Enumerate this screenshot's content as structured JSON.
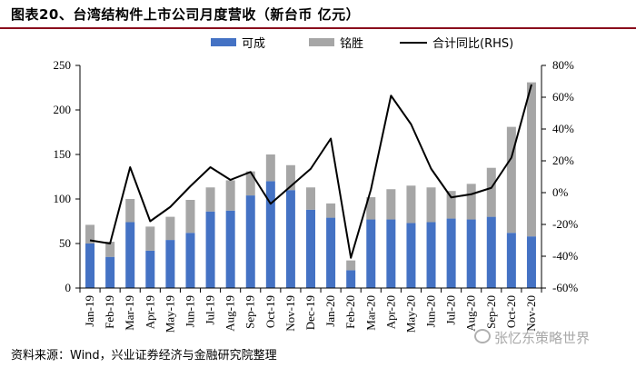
{
  "header": {
    "title": "图表20、台湾结构件上市公司月度营收（新台币 亿元）"
  },
  "source": "资料来源：Wind，兴业证券经济与金融研究院整理",
  "watermark": "张忆东策略世界",
  "colors": {
    "kecheng": "#4472c4",
    "mingsheng": "#a6a6a6",
    "line": "#000000",
    "axis": "#000000",
    "rule": "#8a0e1c"
  },
  "chart_data": {
    "type": "bar",
    "stacked": true,
    "categories": [
      "Jan-19",
      "Feb-19",
      "Mar-19",
      "Apr-19",
      "May-19",
      "Jun-19",
      "Jul-19",
      "Aug-19",
      "Sep-19",
      "Oct-19",
      "Nov-19",
      "Dec-19",
      "Jan-20",
      "Feb-20",
      "Mar-20",
      "Apr-20",
      "May-20",
      "Jun-20",
      "Jul-20",
      "Aug-20",
      "Sep-20",
      "Oct-20",
      "Nov-20"
    ],
    "series": [
      {
        "name": "可成",
        "type": "bar",
        "axis": "left",
        "values": [
          50,
          35,
          74,
          42,
          54,
          62,
          86,
          87,
          104,
          120,
          110,
          88,
          79,
          20,
          77,
          77,
          73,
          74,
          78,
          77,
          80,
          62,
          58
        ]
      },
      {
        "name": "铭胜",
        "type": "bar",
        "axis": "left",
        "values": [
          21,
          17,
          26,
          27,
          26,
          37,
          27,
          34,
          27,
          30,
          28,
          25,
          16,
          11,
          25,
          34,
          42,
          39,
          31,
          40,
          55,
          119,
          173
        ]
      },
      {
        "name": "合计同比(RHS)",
        "type": "line",
        "axis": "right",
        "unit": "%",
        "values": [
          -30,
          -32,
          16,
          -18,
          -9,
          4,
          16,
          8,
          13,
          -7,
          4,
          15,
          34,
          -41,
          2,
          61,
          43,
          15,
          -3,
          -1,
          3,
          22,
          68
        ]
      }
    ],
    "left_axis": {
      "min": 0,
      "max": 250,
      "ticks": [
        0,
        50,
        100,
        150,
        200,
        250
      ]
    },
    "right_axis": {
      "min": -60,
      "max": 80,
      "ticks": [
        "-60%",
        "-40%",
        "-20%",
        "0%",
        "20%",
        "40%",
        "60%",
        "80%"
      ]
    },
    "legend": {
      "position": "top",
      "items": [
        "可成",
        "铭胜",
        "合计同比(RHS)"
      ]
    },
    "grid": false
  }
}
